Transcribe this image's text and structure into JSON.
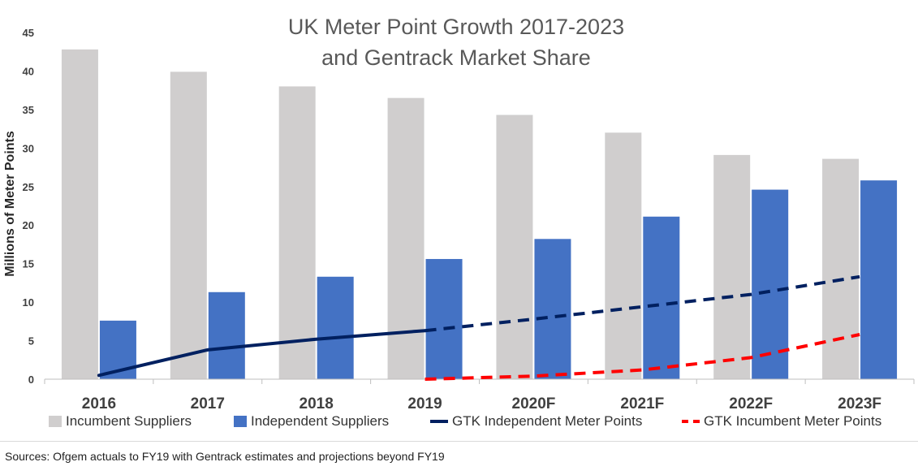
{
  "chart_data": {
    "type": "bar",
    "title_line1": "UK Meter Point Growth 2017-2023",
    "title_line2": "and Gentrack Market Share",
    "ylabel": "Millions of Meter Points",
    "xlabel": "",
    "ylim": [
      0,
      45
    ],
    "yticks": [
      0,
      5,
      10,
      15,
      20,
      25,
      30,
      35,
      40,
      45
    ],
    "categories": [
      "2016",
      "2017",
      "2018",
      "2019",
      "2020F",
      "2021F",
      "2022F",
      "2023F"
    ],
    "series": [
      {
        "name": "Incumbent Suppliers",
        "kind": "bar",
        "color": "#d0cece",
        "values": [
          42.8,
          39.9,
          38.0,
          36.5,
          34.3,
          32.0,
          29.1,
          28.6
        ]
      },
      {
        "name": "Independent Suppliers",
        "kind": "bar",
        "color": "#4472c4",
        "values": [
          7.6,
          11.3,
          13.3,
          15.6,
          18.2,
          21.1,
          24.6,
          25.8
        ]
      },
      {
        "name": "GTK Independent Meter Points",
        "kind": "line",
        "color": "#002060",
        "values": [
          0.5,
          3.8,
          5.2,
          6.3,
          7.8,
          9.4,
          11.0,
          13.3
        ],
        "dashed_from": "2019"
      },
      {
        "name": "GTK Incumbent Meter Points",
        "kind": "line",
        "color": "#ff0000",
        "values": [
          null,
          null,
          null,
          0.0,
          0.4,
          1.2,
          2.8,
          5.8
        ],
        "dashed_from": "2019"
      }
    ],
    "grid": false,
    "legend_position": "bottom"
  },
  "source_text": "Sources: Ofgem actuals to FY19 with Gentrack estimates and projections beyond FY19"
}
